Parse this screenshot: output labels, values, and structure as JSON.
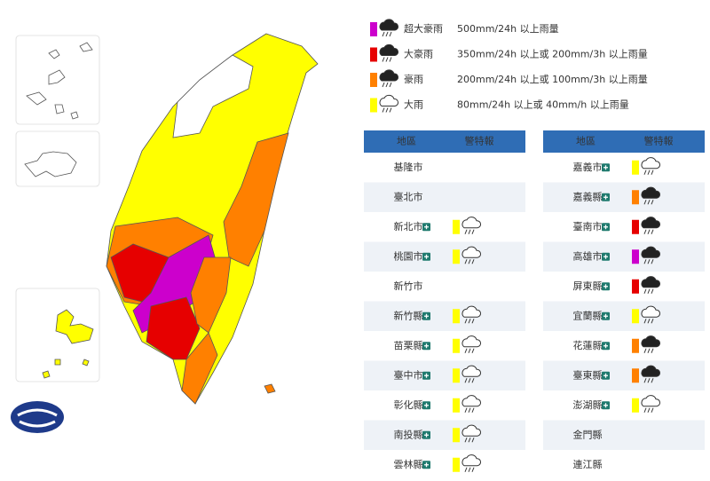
{
  "legend": [
    {
      "label": "超大豪雨",
      "desc": "500mm/24h 以上雨量",
      "color": "#cc00cc"
    },
    {
      "label": "大豪雨",
      "desc": "350mm/24h 以上或 200mm/3h 以上雨量",
      "color": "#e60000"
    },
    {
      "label": "豪雨",
      "desc": "200mm/24h 以上或 100mm/3h 以上雨量",
      "color": "#ff8000"
    },
    {
      "label": "大雨",
      "desc": "80mm/24h 以上或 40mm/h 以上雨量",
      "color": "#ffff00"
    }
  ],
  "tables": [
    {
      "header": [
        "地區",
        "警特報"
      ],
      "rows": [
        {
          "name": "基隆市",
          "level": null
        },
        {
          "name": "臺北市",
          "level": null
        },
        {
          "name": "新北市",
          "level": 3
        },
        {
          "name": "桃園市",
          "level": 3
        },
        {
          "name": "新竹市",
          "level": null
        },
        {
          "name": "新竹縣",
          "level": 3
        },
        {
          "name": "苗栗縣",
          "level": 3
        },
        {
          "name": "臺中市",
          "level": 3
        },
        {
          "name": "彰化縣",
          "level": 3
        },
        {
          "name": "南投縣",
          "level": 3
        },
        {
          "name": "雲林縣",
          "level": 3
        }
      ]
    },
    {
      "header": [
        "地區",
        "警特報"
      ],
      "rows": [
        {
          "name": "嘉義市",
          "level": 3
        },
        {
          "name": "嘉義縣",
          "level": 2
        },
        {
          "name": "臺南市",
          "level": 1
        },
        {
          "name": "高雄市",
          "level": 0
        },
        {
          "name": "屏東縣",
          "level": 1
        },
        {
          "name": "宜蘭縣",
          "level": 3
        },
        {
          "name": "花蓮縣",
          "level": 2
        },
        {
          "name": "臺東縣",
          "level": 2
        },
        {
          "name": "澎湖縣",
          "level": 3
        },
        {
          "name": "金門縣",
          "level": null
        },
        {
          "name": "連江縣",
          "level": null
        }
      ]
    }
  ]
}
